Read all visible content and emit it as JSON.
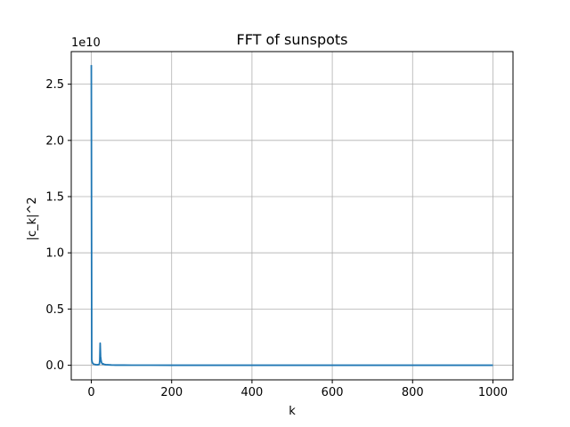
{
  "chart_data": {
    "type": "line",
    "title": "FFT of sunspots",
    "xlabel": "k",
    "ylabel": "|c_k|^2",
    "y_offset_label": "1e10",
    "grid": true,
    "xlim": [
      -50,
      1050
    ],
    "ylim": [
      -0.13,
      2.79
    ],
    "x_ticks": [
      0,
      200,
      400,
      600,
      800,
      1000
    ],
    "x_tick_labels": [
      "0",
      "200",
      "400",
      "600",
      "800",
      "1000"
    ],
    "y_ticks": [
      0.0,
      0.5,
      1.0,
      1.5,
      2.0,
      2.5
    ],
    "y_tick_labels": [
      "0.0",
      "0.5",
      "1.0",
      "1.5",
      "2.0",
      "2.5"
    ],
    "series": [
      {
        "color": "#1f77b4",
        "x": [
          0,
          1,
          2,
          3,
          4,
          5,
          6,
          8,
          10,
          12,
          15,
          18,
          20,
          21,
          22,
          23,
          24,
          25,
          26,
          27,
          28,
          30,
          32,
          34,
          36,
          40,
          45,
          50,
          60,
          80,
          100,
          150,
          200,
          300,
          400,
          500,
          600,
          700,
          800,
          900,
          1000
        ],
        "y": [
          2.67,
          0.05,
          0.03,
          0.02,
          0.015,
          0.012,
          0.01,
          0.008,
          0.006,
          0.005,
          0.004,
          0.006,
          0.01,
          0.04,
          0.196,
          0.08,
          0.05,
          0.03,
          0.02,
          0.015,
          0.01,
          0.012,
          0.008,
          0.006,
          0.005,
          0.004,
          0.003,
          0.002,
          0.001,
          0.001,
          0.0005,
          0.0003,
          0.0002,
          0.0001,
          0.0001,
          0.0001,
          0.0001,
          0.0001,
          0.0001,
          0.0001,
          0.0001
        ]
      }
    ]
  }
}
